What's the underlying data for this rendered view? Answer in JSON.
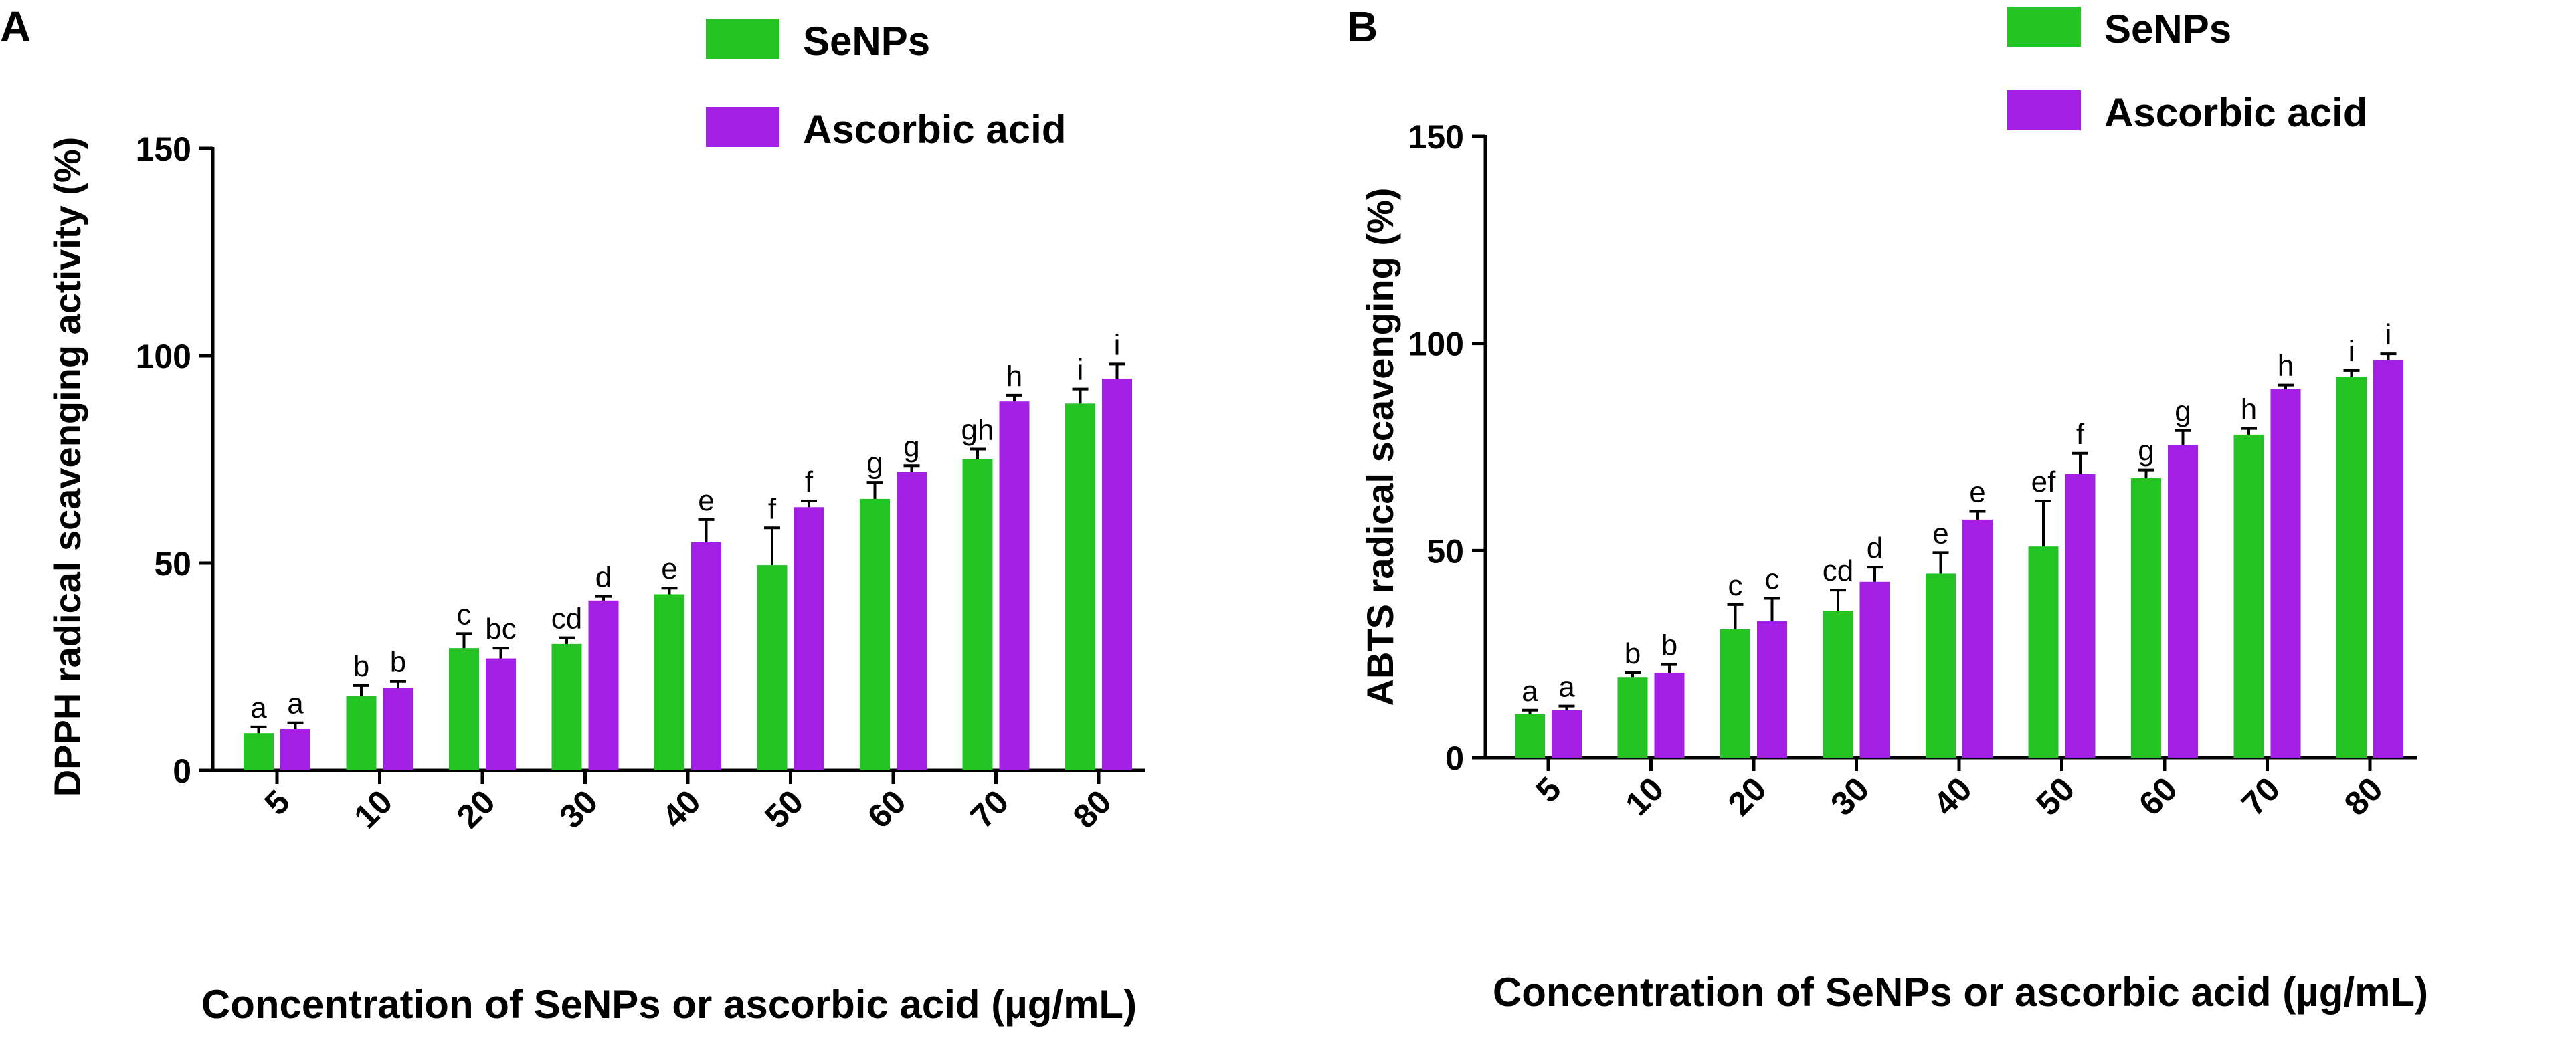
{
  "colors": {
    "senps": "#22c322",
    "ascorbic": "#a31fe6",
    "axis": "#000000"
  },
  "chart_data": [
    {
      "panel": "A",
      "type": "bar",
      "ylabel": "DPPH radical scavenging activity (%)",
      "xlabel": "Concentration of SeNPs or ascorbic acid (µg/mL)",
      "ylim": [
        0,
        150
      ],
      "yticks": [
        0,
        50,
        100,
        150
      ],
      "legend_position": "top",
      "categories": [
        "5",
        "10",
        "20",
        "30",
        "40",
        "50",
        "60",
        "70",
        "80"
      ],
      "series": [
        {
          "name": "SeNPs",
          "values": [
            9,
            18,
            29.5,
            30.5,
            42.5,
            49.5,
            65.5,
            75,
            88.5
          ],
          "errors": [
            1.5,
            2.5,
            3.5,
            1.5,
            1.5,
            9,
            4,
            2.5,
            3.5
          ],
          "letters": [
            "a",
            "b",
            "c",
            "cd",
            "e",
            "f",
            "g",
            "gh",
            "i"
          ]
        },
        {
          "name": "Ascorbic acid",
          "values": [
            10,
            20,
            27,
            41,
            55,
            63.5,
            72,
            89,
            94.5
          ],
          "errors": [
            1.5,
            1.5,
            2.5,
            1,
            5.5,
            1.5,
            1.5,
            1.5,
            3.5
          ],
          "letters": [
            "a",
            "b",
            "bc",
            "d",
            "e",
            "f",
            "g",
            "h",
            "i"
          ]
        }
      ]
    },
    {
      "panel": "B",
      "type": "bar",
      "ylabel": "ABTS radical scavenging (%)",
      "xlabel": "Concentration of SeNPs or ascorbic acid (µg/mL)",
      "ylim": [
        0,
        150
      ],
      "yticks": [
        0,
        50,
        100,
        150
      ],
      "legend_position": "top",
      "categories": [
        "5",
        "10",
        "20",
        "30",
        "40",
        "50",
        "60",
        "70",
        "80"
      ],
      "series": [
        {
          "name": "SeNPs",
          "values": [
            10.5,
            19.5,
            31,
            35.5,
            44.5,
            51,
            67.5,
            78,
            92
          ],
          "errors": [
            1,
            1,
            6,
            5,
            5,
            11,
            2,
            1.5,
            1.5
          ],
          "letters": [
            "a",
            "b",
            "c",
            "cd",
            "e",
            "ef",
            "g",
            "h",
            "i"
          ]
        },
        {
          "name": "Ascorbic acid",
          "values": [
            11.5,
            20.5,
            33,
            42.5,
            57.5,
            68.5,
            75.5,
            89,
            96
          ],
          "errors": [
            1,
            2,
            5.5,
            3.5,
            2,
            5,
            3.5,
            1,
            1.5
          ],
          "letters": [
            "a",
            "b",
            "c",
            "d",
            "e",
            "f",
            "g",
            "h",
            "i"
          ]
        }
      ]
    }
  ]
}
